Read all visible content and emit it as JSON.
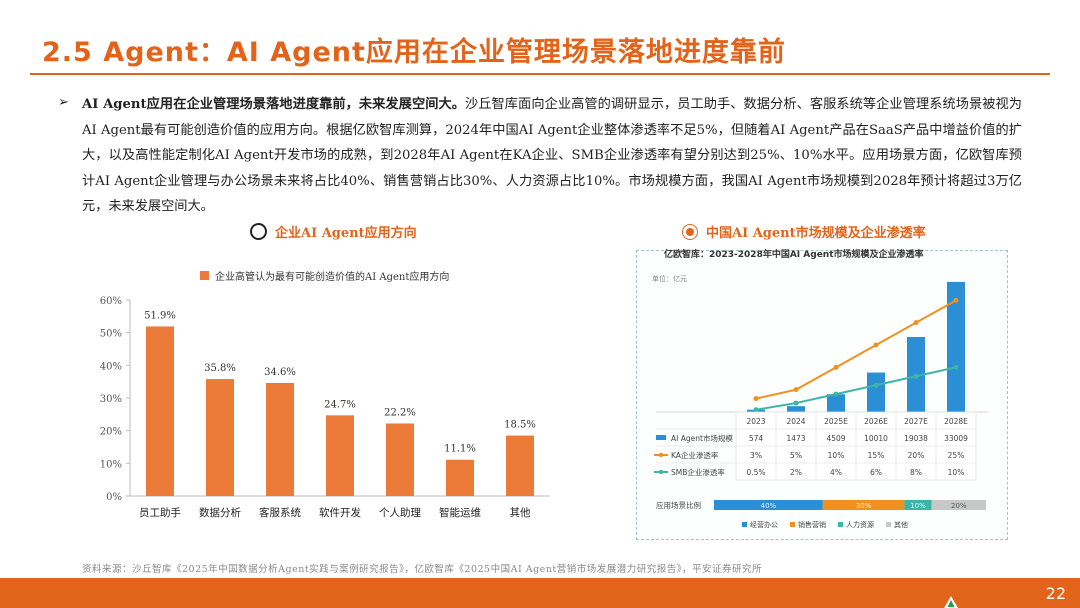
{
  "title": "2.5 Agent：AI Agent应用在企业管理场景落地进度靠前",
  "bullet": "➢",
  "paragraph": {
    "lead": "AI Agent应用在企业管理场景落地进度靠前，未来发展空间大。",
    "body": "沙丘智库面向企业高管的调研显示，员工助手、数据分析、客服系统等企业管理系统场景被视为AI Agent最有可能创造价值的应用方向。根据亿欧智库测算，2024年中国AI Agent企业整体渗透率不足5%，但随着AI Agent产品在SaaS产品中增益价值的扩大，以及高性能定制化AI Agent开发市场的成熟，到2028年AI Agent在KA企业、SMB企业渗透率有望分别达到25%、10%水平。应用场景方面，亿欧智库预计AI Agent企业管理与办公场景未来将占比40%、销售营销占比30%、人力资源占比10%。市场规模方面，我国AI Agent市场规模到2028年预计将超过3万亿元，未来发展空间大。"
  },
  "left_section_label": "企业AI Agent应用方向",
  "right_section_label": "中国AI Agent市场规模及企业渗透率",
  "source": "资料来源：沙丘智库《2025年中国数据分析Agent实践与案例研究报告》，亿欧智库《2025中国AI Agent营销市场发展潜力研究报告》，平安证券研究所",
  "page_number": "22",
  "colors": {
    "accent": "#e2641b",
    "bar": "#ec7a38",
    "blue": "#2b8fd6",
    "teal": "#3ab5a8",
    "gray": "#c8c8c8"
  },
  "chart_data": [
    {
      "type": "bar",
      "legend": "企业高管认为最有可能创造价值的AI Agent应用方向",
      "categories": [
        "员工助手",
        "数据分析",
        "客服系统",
        "软件开发",
        "个人助理",
        "智能运维",
        "其他"
      ],
      "values": [
        51.9,
        35.8,
        34.6,
        24.7,
        22.2,
        11.1,
        18.5
      ],
      "value_labels": [
        "51.9%",
        "35.8%",
        "34.6%",
        "24.7%",
        "22.2%",
        "11.1%",
        "18.5%"
      ],
      "yticks": [
        "0%",
        "10%",
        "20%",
        "30%",
        "40%",
        "50%",
        "60%"
      ],
      "ylim": [
        0,
        60
      ],
      "legend_position": "top"
    },
    {
      "type": "bar+line",
      "title": "亿欧智库：2023-2028年中国AI Agent市场规模及企业渗透率",
      "unit": "单位：亿元",
      "categories": [
        "2023",
        "2024",
        "2025E",
        "2026E",
        "2027E",
        "2028E"
      ],
      "series": [
        {
          "name": "AI Agent市场规模",
          "kind": "bar",
          "values": [
            574,
            1473,
            4509,
            10010,
            19038,
            33009
          ],
          "labels": [
            "574",
            "1473",
            "4509",
            "10010",
            "19038",
            "33009"
          ]
        },
        {
          "name": "KA企业渗透率",
          "kind": "line",
          "values": [
            3,
            5,
            10,
            15,
            20,
            25
          ],
          "labels": [
            "3%",
            "5%",
            "10%",
            "15%",
            "20%",
            "25%"
          ]
        },
        {
          "name": "SMB企业渗透率",
          "kind": "line",
          "values": [
            0.5,
            2,
            4,
            6,
            8,
            10
          ],
          "labels": [
            "0.5%",
            "2%",
            "4%",
            "6%",
            "8%",
            "10%"
          ]
        }
      ],
      "scenario": {
        "label": "应用场景比例",
        "segments": [
          {
            "name": "经营办公",
            "value": 40,
            "label": "40%"
          },
          {
            "name": "销售营销",
            "value": 30,
            "label": "30%"
          },
          {
            "name": "人力资源",
            "value": 10,
            "label": "10%"
          },
          {
            "name": "其他",
            "value": 20,
            "label": "20%"
          }
        ]
      }
    }
  ]
}
